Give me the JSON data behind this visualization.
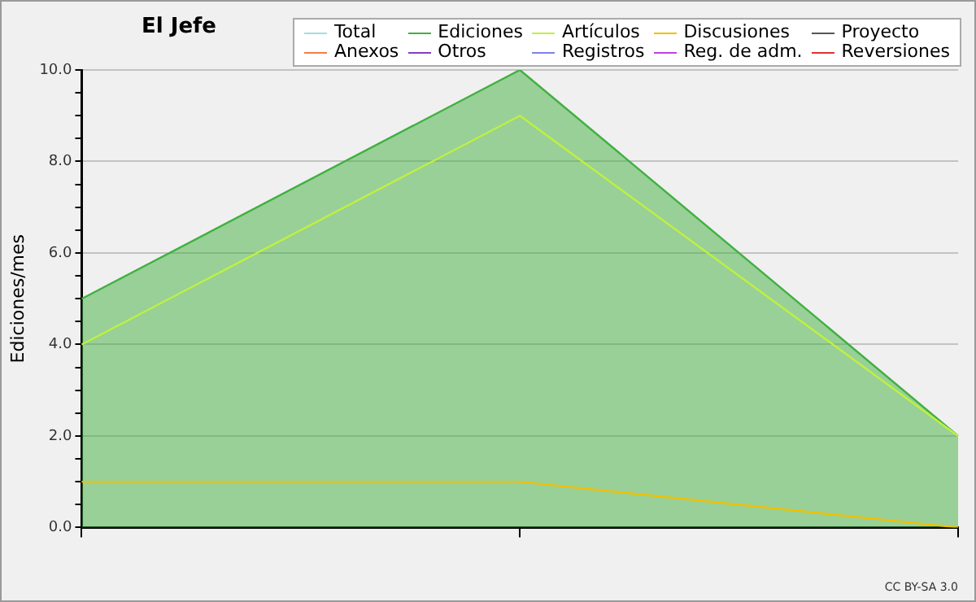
{
  "chart_data": {
    "type": "line",
    "title": "El Jefe",
    "ylabel": "Ediciones/mes",
    "categories": [
      null,
      null,
      null
    ],
    "series": [
      {
        "name": "Total",
        "color": "#a0e0e0",
        "values": [
          null,
          null,
          null
        ]
      },
      {
        "name": "Ediciones",
        "color": "#40b040",
        "type": "area",
        "values": [
          5,
          10,
          2
        ]
      },
      {
        "name": "Artículos",
        "color": "#c0f040",
        "values": [
          4,
          9,
          2
        ]
      },
      {
        "name": "Discusiones",
        "color": "#f0c000",
        "values": [
          1,
          1,
          0
        ]
      },
      {
        "name": "Proyecto",
        "color": "#555555",
        "values": [
          null,
          null,
          null
        ]
      },
      {
        "name": "Anexos",
        "color": "#f08040",
        "values": [
          null,
          null,
          null
        ]
      },
      {
        "name": "Otros",
        "color": "#8040c0",
        "values": [
          null,
          null,
          null
        ]
      },
      {
        "name": "Registros",
        "color": "#8080f0",
        "values": [
          null,
          null,
          null
        ]
      },
      {
        "name": "Reg. de adm.",
        "color": "#c040e0",
        "values": [
          null,
          null,
          null
        ]
      },
      {
        "name": "Reversiones",
        "color": "#e03030",
        "values": [
          null,
          null,
          null
        ]
      }
    ],
    "ylim": [
      0,
      10
    ],
    "yticks": [
      {
        "value": 0,
        "label": "0.0"
      },
      {
        "value": 0.5,
        "label": null
      },
      {
        "value": 1,
        "label": null
      },
      {
        "value": 1.5,
        "label": null
      },
      {
        "value": 2,
        "label": "2.0"
      },
      {
        "value": 2.5,
        "label": null
      },
      {
        "value": 3,
        "label": null
      },
      {
        "value": 3.5,
        "label": null
      },
      {
        "value": 4,
        "label": "4.0"
      },
      {
        "value": 4.5,
        "label": null
      },
      {
        "value": 5,
        "label": null
      },
      {
        "value": 5.5,
        "label": null
      },
      {
        "value": 6,
        "label": "6.0"
      },
      {
        "value": 6.5,
        "label": null
      },
      {
        "value": 7,
        "label": null
      },
      {
        "value": 7.5,
        "label": null
      },
      {
        "value": 8,
        "label": "8.0"
      },
      {
        "value": 8.5,
        "label": null
      },
      {
        "value": 9,
        "label": null
      },
      {
        "value": 9.5,
        "label": null
      },
      {
        "value": 10,
        "label": "10.0"
      }
    ],
    "grid": "y",
    "legend": "top right",
    "marker": "none",
    "line_style": "solid",
    "annotations": [
      "CC BY-SA 3.0"
    ]
  }
}
